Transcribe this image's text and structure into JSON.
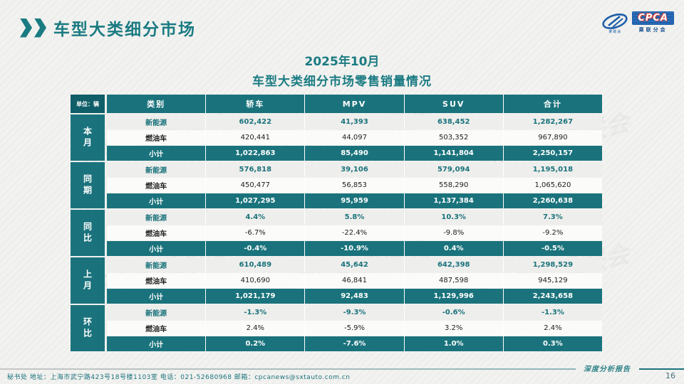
{
  "header": {
    "title": "车型大类细分市场"
  },
  "logo": {
    "name": "CPCA",
    "caption": "乘联分会",
    "mark_caption": "乘联会"
  },
  "subtitle": {
    "line1": "2025年10月",
    "line2": "车型大类细分市场零售销量情况"
  },
  "watermark": "CPCA 乘联会",
  "chart_data": {
    "type": "table",
    "title": "2025年10月车型大类细分市场零售销量情况",
    "unit_label": "单位：辆",
    "columns": [
      "类别",
      "轿车",
      "MPV",
      "SUV",
      "合计"
    ],
    "row_groups": [
      {
        "group": "本月",
        "rows": [
          {
            "category": "新能源",
            "kind": "nev",
            "values": [
              "602,422",
              "41,393",
              "638,452",
              "1,282,267"
            ]
          },
          {
            "category": "燃油车",
            "kind": "ice",
            "values": [
              "420,441",
              "44,097",
              "503,352",
              "967,890"
            ]
          },
          {
            "category": "小计",
            "kind": "sub",
            "values": [
              "1,022,863",
              "85,490",
              "1,141,804",
              "2,250,157"
            ]
          }
        ]
      },
      {
        "group": "同期",
        "rows": [
          {
            "category": "新能源",
            "kind": "nev",
            "values": [
              "576,818",
              "39,106",
              "579,094",
              "1,195,018"
            ]
          },
          {
            "category": "燃油车",
            "kind": "ice",
            "values": [
              "450,477",
              "56,853",
              "558,290",
              "1,065,620"
            ]
          },
          {
            "category": "小计",
            "kind": "sub",
            "values": [
              "1,027,295",
              "95,959",
              "1,137,384",
              "2,260,638"
            ]
          }
        ]
      },
      {
        "group": "同比",
        "rows": [
          {
            "category": "新能源",
            "kind": "nev",
            "values": [
              "4.4%",
              "5.8%",
              "10.3%",
              "7.3%"
            ]
          },
          {
            "category": "燃油车",
            "kind": "ice",
            "values": [
              "-6.7%",
              "-22.4%",
              "-9.8%",
              "-9.2%"
            ]
          },
          {
            "category": "小计",
            "kind": "sub",
            "values": [
              "-0.4%",
              "-10.9%",
              "0.4%",
              "-0.5%"
            ]
          }
        ]
      },
      {
        "group": "上月",
        "rows": [
          {
            "category": "新能源",
            "kind": "nev",
            "values": [
              "610,489",
              "45,642",
              "642,398",
              "1,298,529"
            ]
          },
          {
            "category": "燃油车",
            "kind": "ice",
            "values": [
              "410,690",
              "46,841",
              "487,598",
              "945,129"
            ]
          },
          {
            "category": "小计",
            "kind": "sub",
            "values": [
              "1,021,179",
              "92,483",
              "1,129,996",
              "2,243,658"
            ]
          }
        ]
      },
      {
        "group": "环比",
        "rows": [
          {
            "category": "新能源",
            "kind": "nev",
            "values": [
              "-1.3%",
              "-9.3%",
              "-0.6%",
              "-1.3%"
            ]
          },
          {
            "category": "燃油车",
            "kind": "ice",
            "values": [
              "2.4%",
              "-5.9%",
              "3.2%",
              "2.4%"
            ]
          },
          {
            "category": "小计",
            "kind": "sub",
            "values": [
              "0.2%",
              "-7.6%",
              "1.0%",
              "0.3%"
            ]
          }
        ]
      }
    ]
  },
  "footer": {
    "contact": "秘书处  地址：上海市武宁路423号18号楼1103室  电话：021-52680968   邮箱：cpcanews@sxtauto.com.cn",
    "report_label": "深度分析报告",
    "page_number": "16"
  },
  "colors": {
    "teal": "#1a737c",
    "teal_dark": "#0f5e68",
    "title_teal": "#1a7b82",
    "logo_blue": "#1e5fa8",
    "logo_red": "#d9382e",
    "nev_row_bg": "#eeeeec",
    "ice_row_bg": "#fbfbf9"
  }
}
